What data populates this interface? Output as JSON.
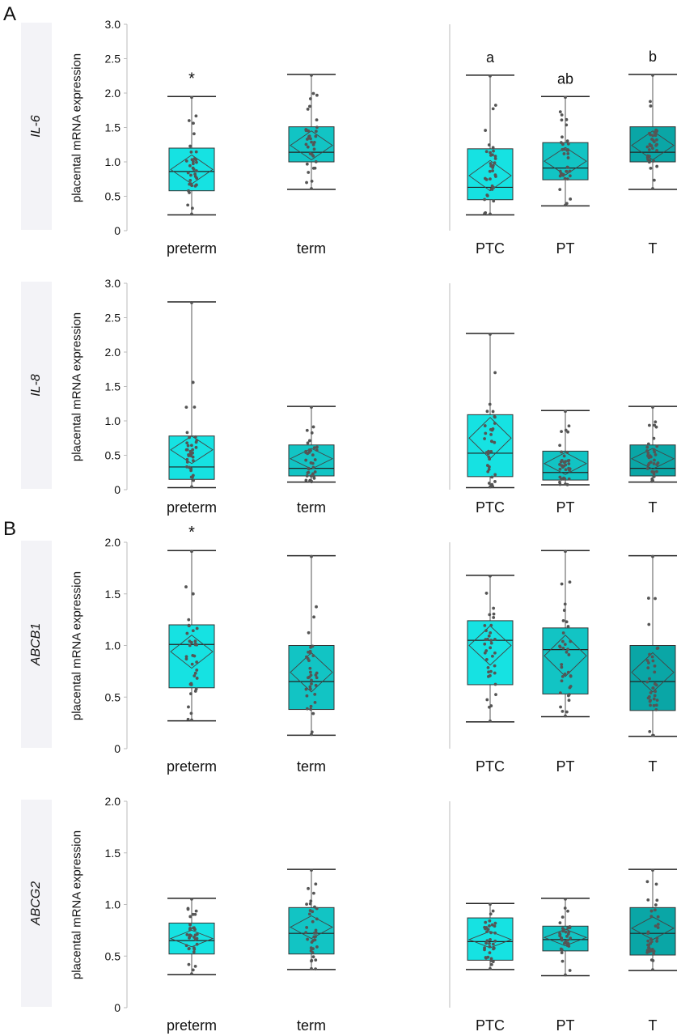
{
  "panel_labels": [
    "A",
    "B"
  ],
  "y_axis_label": "placental mRNA expression",
  "chart_data": [
    {
      "type": "box",
      "gene": "IL-6",
      "ylim": [
        0,
        3.0
      ],
      "yticks": [
        "0",
        "0.5",
        "1.0",
        "1.5",
        "2.0",
        "2.5",
        "3.0"
      ],
      "left": {
        "categories": [
          "preterm",
          "term"
        ],
        "colors": [
          "#16e2e2",
          "#12c4c4"
        ],
        "boxes": [
          {
            "min": 0.23,
            "q1": 0.58,
            "median": 0.86,
            "q3": 1.2,
            "max": 1.95,
            "mean": 0.89,
            "sd": 0.21,
            "annotation": "*"
          },
          {
            "min": 0.6,
            "q1": 1.0,
            "median": 1.14,
            "q3": 1.51,
            "max": 2.27,
            "mean": 1.24,
            "sd": 0.21,
            "annotation": ""
          }
        ]
      },
      "right": {
        "categories": [
          "PTC",
          "PT",
          "T"
        ],
        "colors": [
          "#16e2e2",
          "#12c4c4",
          "#0aa6a6"
        ],
        "boxes": [
          {
            "min": 0.23,
            "q1": 0.45,
            "median": 0.63,
            "q3": 1.19,
            "max": 2.26,
            "mean": 0.8,
            "sd": 0.22,
            "annotation": "a"
          },
          {
            "min": 0.36,
            "q1": 0.74,
            "median": 0.91,
            "q3": 1.28,
            "max": 1.95,
            "mean": 1.01,
            "sd": 0.2,
            "annotation": "ab"
          },
          {
            "min": 0.6,
            "q1": 1.0,
            "median": 1.14,
            "q3": 1.51,
            "max": 2.27,
            "mean": 1.24,
            "sd": 0.21,
            "annotation": "b"
          }
        ]
      }
    },
    {
      "type": "box",
      "gene": "IL-8",
      "ylim": [
        0,
        3.0
      ],
      "yticks": [
        "0",
        "0.5",
        "1.0",
        "1.5",
        "2.0",
        "2.5",
        "3.0"
      ],
      "left": {
        "categories": [
          "preterm",
          "term"
        ],
        "colors": [
          "#16e2e2",
          "#12c4c4"
        ],
        "boxes": [
          {
            "min": 0.03,
            "q1": 0.15,
            "median": 0.33,
            "q3": 0.78,
            "max": 2.73,
            "mean": 0.58,
            "sd": 0.2,
            "annotation": ""
          },
          {
            "min": 0.11,
            "q1": 0.2,
            "median": 0.31,
            "q3": 0.65,
            "max": 1.21,
            "mean": 0.45,
            "sd": 0.15,
            "annotation": ""
          }
        ]
      },
      "right": {
        "categories": [
          "PTC",
          "PT",
          "T"
        ],
        "colors": [
          "#16e2e2",
          "#12c4c4",
          "#0aa6a6"
        ],
        "boxes": [
          {
            "min": 0.03,
            "q1": 0.19,
            "median": 0.53,
            "q3": 1.09,
            "max": 2.27,
            "mean": 0.75,
            "sd": 0.3,
            "annotation": ""
          },
          {
            "min": 0.07,
            "q1": 0.14,
            "median": 0.25,
            "q3": 0.56,
            "max": 1.15,
            "mean": 0.38,
            "sd": 0.16,
            "annotation": ""
          },
          {
            "min": 0.11,
            "q1": 0.2,
            "median": 0.31,
            "q3": 0.65,
            "max": 1.21,
            "mean": 0.45,
            "sd": 0.15,
            "annotation": ""
          }
        ]
      }
    },
    {
      "type": "box",
      "gene": "ABCB1",
      "ylim": [
        0,
        2.0
      ],
      "yticks": [
        "0",
        "0.5",
        "1.0",
        "1.5",
        "2.0"
      ],
      "left": {
        "categories": [
          "preterm",
          "term"
        ],
        "colors": [
          "#16e2e2",
          "#12c4c4"
        ],
        "boxes": [
          {
            "min": 0.27,
            "q1": 0.59,
            "median": 1.01,
            "q3": 1.2,
            "max": 1.92,
            "mean": 0.94,
            "sd": 0.16,
            "annotation": "*"
          },
          {
            "min": 0.13,
            "q1": 0.38,
            "median": 0.65,
            "q3": 1.0,
            "max": 1.87,
            "mean": 0.74,
            "sd": 0.19,
            "annotation": ""
          }
        ]
      },
      "right": {
        "categories": [
          "PTC",
          "PT",
          "T"
        ],
        "colors": [
          "#16e2e2",
          "#12c4c4",
          "#0aa6a6"
        ],
        "boxes": [
          {
            "min": 0.26,
            "q1": 0.62,
            "median": 1.05,
            "q3": 1.24,
            "max": 1.68,
            "mean": 1.0,
            "sd": 0.19,
            "annotation": ""
          },
          {
            "min": 0.31,
            "q1": 0.53,
            "median": 0.96,
            "q3": 1.17,
            "max": 1.92,
            "mean": 0.9,
            "sd": 0.2,
            "annotation": ""
          },
          {
            "min": 0.12,
            "q1": 0.37,
            "median": 0.65,
            "q3": 1.0,
            "max": 1.87,
            "mean": 0.74,
            "sd": 0.19,
            "annotation": ""
          }
        ]
      }
    },
    {
      "type": "box",
      "gene": "ABCG2",
      "ylim": [
        0,
        2.0
      ],
      "yticks": [
        "0",
        "0.5",
        "1.0",
        "1.5",
        "2.0"
      ],
      "left": {
        "categories": [
          "preterm",
          "term"
        ],
        "colors": [
          "#16e2e2",
          "#12c4c4"
        ],
        "boxes": [
          {
            "min": 0.32,
            "q1": 0.52,
            "median": 0.65,
            "q3": 0.82,
            "max": 1.06,
            "mean": 0.67,
            "sd": 0.08,
            "annotation": ""
          },
          {
            "min": 0.37,
            "q1": 0.52,
            "median": 0.72,
            "q3": 0.97,
            "max": 1.34,
            "mean": 0.78,
            "sd": 0.11,
            "annotation": ""
          }
        ]
      },
      "right": {
        "categories": [
          "PTC",
          "PT",
          "T"
        ],
        "colors": [
          "#16e2e2",
          "#12c4c4",
          "#0aa6a6"
        ],
        "boxes": [
          {
            "min": 0.37,
            "q1": 0.46,
            "median": 0.64,
            "q3": 0.87,
            "max": 1.01,
            "mean": 0.66,
            "sd": 0.08,
            "annotation": ""
          },
          {
            "min": 0.31,
            "q1": 0.55,
            "median": 0.66,
            "q3": 0.79,
            "max": 1.06,
            "mean": 0.68,
            "sd": 0.08,
            "annotation": ""
          },
          {
            "min": 0.36,
            "q1": 0.51,
            "median": 0.72,
            "q3": 0.97,
            "max": 1.34,
            "mean": 0.77,
            "sd": 0.11,
            "annotation": ""
          }
        ]
      }
    }
  ]
}
